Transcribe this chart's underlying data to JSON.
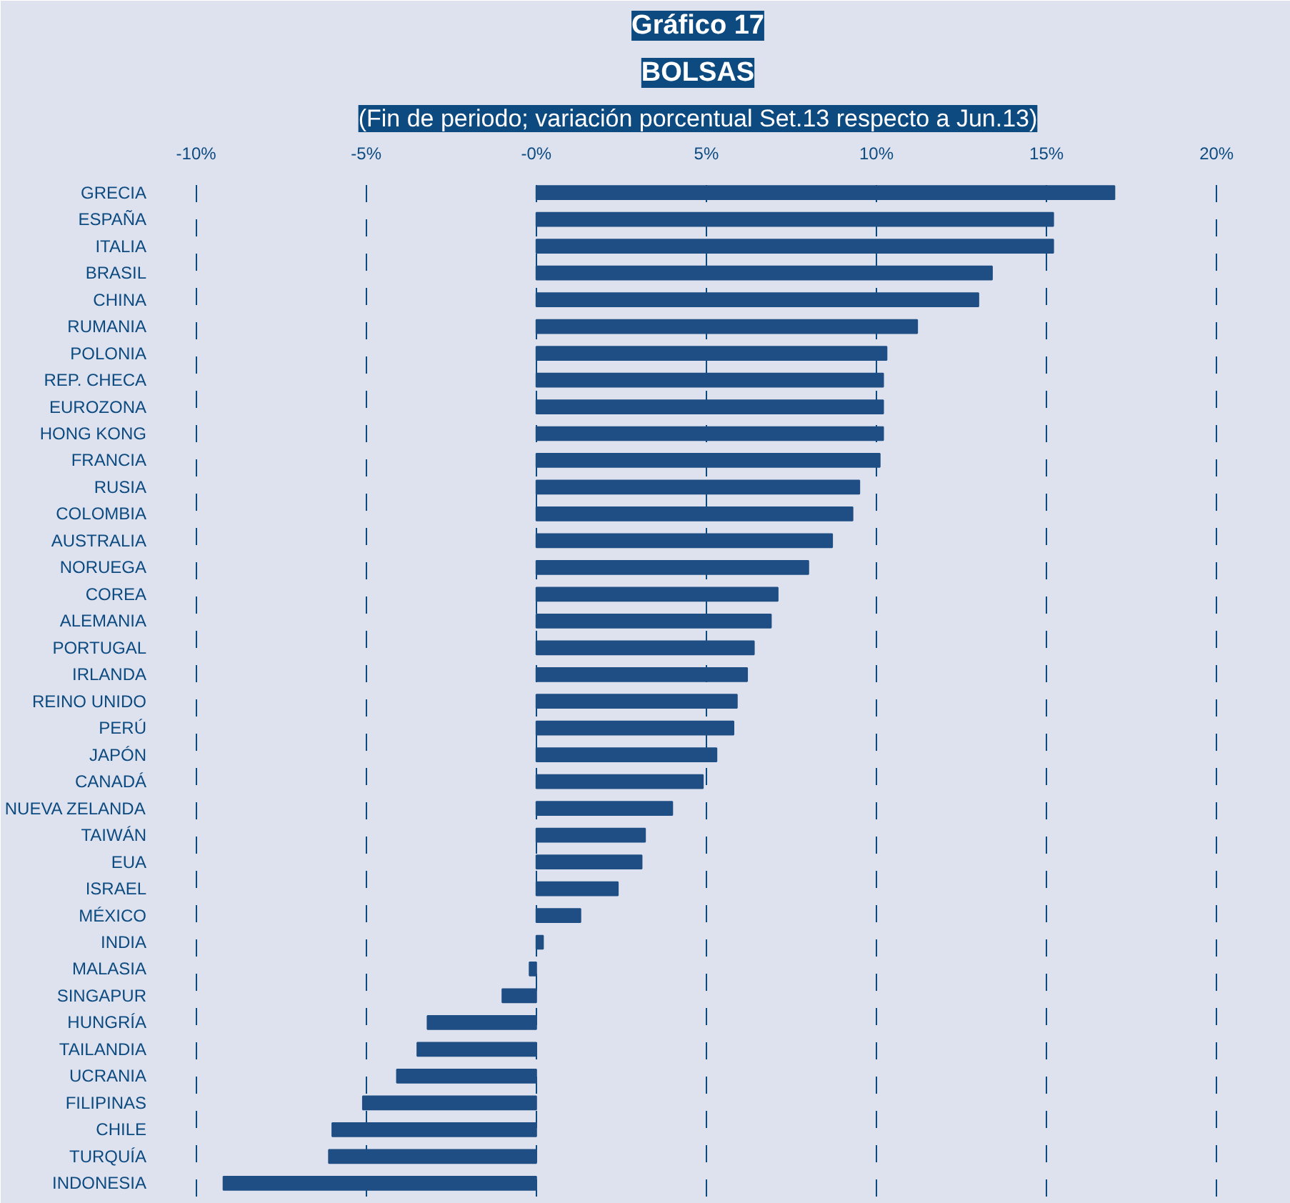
{
  "chart_data": {
    "type": "bar",
    "orientation": "horizontal",
    "title": "Gráfico 17",
    "subtitle": "BOLSAS",
    "annotations": [
      "(Fin de periodo; variación porcentual Set.13 respecto a Jun.13)"
    ],
    "categories": [
      "GRECIA",
      "ESPAÑA",
      "ITALIA",
      "BRASIL",
      "CHINA",
      "RUMANIA",
      "POLONIA",
      "REP. CHECA",
      "EUROZONA",
      "HONG KONG",
      "FRANCIA",
      "RUSIA",
      "COLOMBIA",
      "AUSTRALIA",
      "NORUEGA",
      "COREA",
      "ALEMANIA",
      "PORTUGAL",
      "IRLANDA",
      "REINO UNIDO",
      "PERÚ",
      "JAPÓN",
      "CANADÁ",
      "NUEVA ZELANDA",
      "TAIWÁN",
      "EUA",
      "ISRAEL",
      "MÉXICO",
      "INDIA",
      "MALASIA",
      "SINGAPUR",
      "HUNGRÍA",
      "TAILANDIA",
      "UCRANIA",
      "FILIPINAS",
      "CHILE",
      "TURQUÍA",
      "INDONESIA"
    ],
    "values": [
      17.0,
      15.2,
      15.2,
      13.4,
      13.0,
      11.2,
      10.3,
      10.2,
      10.2,
      10.2,
      10.1,
      9.5,
      9.3,
      8.7,
      8.0,
      7.1,
      6.9,
      6.4,
      6.2,
      5.9,
      5.8,
      5.3,
      4.9,
      4.0,
      3.2,
      3.1,
      2.4,
      1.3,
      0.2,
      -0.2,
      -1.0,
      -3.2,
      -3.5,
      -4.1,
      -5.1,
      -6.0,
      -6.1,
      -9.2
    ],
    "color": "#1f4e84",
    "xlim": [
      -11,
      20.5
    ],
    "xticks": [
      {
        "value": -10,
        "label": "-10%"
      },
      {
        "value": -5,
        "label": "-5%"
      },
      {
        "value": 0,
        "label": "-0%"
      },
      {
        "value": 5,
        "label": "5%"
      },
      {
        "value": 10,
        "label": "10%"
      },
      {
        "value": 15,
        "label": "15%"
      },
      {
        "value": 20,
        "label": "20%"
      }
    ],
    "grid": "x"
  }
}
